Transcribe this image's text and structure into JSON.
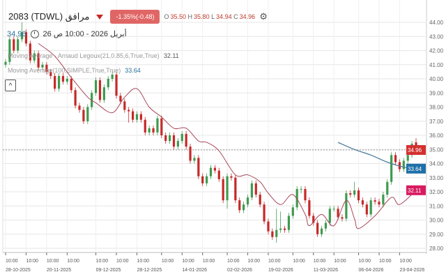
{
  "header": {
    "symbol": "2083 (TDWL) مرافق",
    "change_badge": "-1.35%(-0.48)",
    "ohlc": {
      "o_label": "O",
      "o": "35.50",
      "h_label": "H",
      "h": "35.80",
      "l_label": "L",
      "l": "34.94",
      "c_label": "C",
      "c": "34.96"
    },
    "last_price": "34.96",
    "datetime": "أبريل 2026 - 10:00 ص 26",
    "icons": {
      "direction": "triangle-down-icon",
      "settings": "gear-icon",
      "clock": "clock-icon",
      "collapse": "chevron-up-icon"
    }
  },
  "legend": [
    {
      "name": "Moving Average - Arnaud Legoux(21,0.85,6,True,True)",
      "value": "32.11"
    },
    {
      "name": "Moving Average(100,SIMPLE,True,True)",
      "value": "33.64"
    }
  ],
  "colors": {
    "up": "#3f9a4f",
    "down": "#c62828",
    "alma": "#a8475a",
    "sma": "#4a7a9c",
    "last_tag": "#d32f2f",
    "sma_tag": "#1f6fa8",
    "alma_tag": "#d81b60",
    "badge": "#e06666"
  },
  "chart_data": {
    "type": "candlestick",
    "ylim": [
      27.5,
      44.6
    ],
    "yticks": [
      "28.00",
      "29.00",
      "30.00",
      "31.00",
      "32.00",
      "33.00",
      "34.00",
      "35.00",
      "36.00",
      "37.00",
      "38.00",
      "39.00",
      "40.00",
      "41.00",
      "42.00",
      "43.00",
      "44.00"
    ],
    "grid": true,
    "candles": [
      [
        41.0,
        41.4,
        40.8,
        41.2
      ],
      [
        41.2,
        43.0,
        41.0,
        42.8
      ],
      [
        42.8,
        43.0,
        41.8,
        42.0
      ],
      [
        42.0,
        43.0,
        41.8,
        42.8
      ],
      [
        42.8,
        44.0,
        42.6,
        43.3
      ],
      [
        43.3,
        43.5,
        42.3,
        42.5
      ],
      [
        42.5,
        42.7,
        41.1,
        41.3
      ],
      [
        41.3,
        42.0,
        41.1,
        41.8
      ],
      [
        41.8,
        42.0,
        40.6,
        40.8
      ],
      [
        40.8,
        41.2,
        40.6,
        41.0
      ],
      [
        41.0,
        41.2,
        40.3,
        40.5
      ],
      [
        40.5,
        40.7,
        40.0,
        40.2
      ],
      [
        40.2,
        40.4,
        39.1,
        39.3
      ],
      [
        39.3,
        40.4,
        39.1,
        40.2
      ],
      [
        40.2,
        40.4,
        39.6,
        39.8
      ],
      [
        39.8,
        40.2,
        39.6,
        40.0
      ],
      [
        40.0,
        40.2,
        39.0,
        39.2
      ],
      [
        39.2,
        39.4,
        37.9,
        38.1
      ],
      [
        38.1,
        38.3,
        37.6,
        37.8
      ],
      [
        37.8,
        38.0,
        36.8,
        37.0
      ],
      [
        37.0,
        38.2,
        36.8,
        38.0
      ],
      [
        38.0,
        39.2,
        37.8,
        39.0
      ],
      [
        39.0,
        40.1,
        38.8,
        39.9
      ],
      [
        39.9,
        40.1,
        38.3,
        38.5
      ],
      [
        38.5,
        39.6,
        38.3,
        39.4
      ],
      [
        39.4,
        40.2,
        39.2,
        40.0
      ],
      [
        40.0,
        40.6,
        39.8,
        40.3
      ],
      [
        40.3,
        40.5,
        38.6,
        38.8
      ],
      [
        38.8,
        39.0,
        38.2,
        38.4
      ],
      [
        38.4,
        38.6,
        37.6,
        37.8
      ],
      [
        37.8,
        38.0,
        36.9,
        37.7
      ],
      [
        37.7,
        37.9,
        36.9,
        37.1
      ],
      [
        37.1,
        37.7,
        36.9,
        37.5
      ],
      [
        37.5,
        37.7,
        36.9,
        37.1
      ],
      [
        37.1,
        37.3,
        36.0,
        36.2
      ],
      [
        36.2,
        36.7,
        36.0,
        36.5
      ],
      [
        36.5,
        36.7,
        36.0,
        36.2
      ],
      [
        36.2,
        37.4,
        36.0,
        37.2
      ],
      [
        37.2,
        37.4,
        35.8,
        36.0
      ],
      [
        36.0,
        36.2,
        35.4,
        35.6
      ],
      [
        35.6,
        36.2,
        35.4,
        36.0
      ],
      [
        36.0,
        36.2,
        35.0,
        35.2
      ],
      [
        35.2,
        35.8,
        35.0,
        35.6
      ],
      [
        35.6,
        36.3,
        35.4,
        36.1
      ],
      [
        36.1,
        36.3,
        35.0,
        35.2
      ],
      [
        35.2,
        35.4,
        34.0,
        34.2
      ],
      [
        34.2,
        34.6,
        34.0,
        34.4
      ],
      [
        34.4,
        34.6,
        32.9,
        33.1
      ],
      [
        33.1,
        33.3,
        32.4,
        32.6
      ],
      [
        32.6,
        33.3,
        32.4,
        33.1
      ],
      [
        33.1,
        33.9,
        32.9,
        33.7
      ],
      [
        33.7,
        33.9,
        33.3,
        33.5
      ],
      [
        33.5,
        33.7,
        32.7,
        32.9
      ],
      [
        32.9,
        33.1,
        31.2,
        31.4
      ],
      [
        31.4,
        33.3,
        30.8,
        33.1
      ],
      [
        33.1,
        33.3,
        32.8,
        33.0
      ],
      [
        33.0,
        33.2,
        31.2,
        31.4
      ],
      [
        31.4,
        31.6,
        30.5,
        30.7
      ],
      [
        30.7,
        31.3,
        30.5,
        31.1
      ],
      [
        31.1,
        31.8,
        30.9,
        31.6
      ],
      [
        31.6,
        32.8,
        31.4,
        32.6
      ],
      [
        32.6,
        32.8,
        31.6,
        31.8
      ],
      [
        31.8,
        32.0,
        30.9,
        31.1
      ],
      [
        31.1,
        31.3,
        29.7,
        29.9
      ],
      [
        29.9,
        30.1,
        29.0,
        29.2
      ],
      [
        29.2,
        29.4,
        28.6,
        28.8
      ],
      [
        28.8,
        30.8,
        28.4,
        29.3
      ],
      [
        29.3,
        30.6,
        29.1,
        29.4
      ],
      [
        29.4,
        29.6,
        29.1,
        29.3
      ],
      [
        29.3,
        30.5,
        29.1,
        30.3
      ],
      [
        30.3,
        31.1,
        30.1,
        30.9
      ],
      [
        30.9,
        32.4,
        30.7,
        32.2
      ],
      [
        32.2,
        32.4,
        31.9,
        32.2
      ],
      [
        32.2,
        32.4,
        31.2,
        31.4
      ],
      [
        31.4,
        31.6,
        30.1,
        30.3
      ],
      [
        30.3,
        30.5,
        29.6,
        29.8
      ],
      [
        29.8,
        30.0,
        28.8,
        29.0
      ],
      [
        29.0,
        29.6,
        28.8,
        29.4
      ],
      [
        29.4,
        30.0,
        29.2,
        29.8
      ],
      [
        29.8,
        31.0,
        29.6,
        30.8
      ],
      [
        30.8,
        31.0,
        30.6,
        30.8
      ],
      [
        30.8,
        31.0,
        30.0,
        30.2
      ],
      [
        30.2,
        30.4,
        29.9,
        30.1
      ],
      [
        30.1,
        32.1,
        29.9,
        31.9
      ],
      [
        31.9,
        32.1,
        31.6,
        31.8
      ],
      [
        31.8,
        32.7,
        31.6,
        32.1
      ],
      [
        32.1,
        32.3,
        31.2,
        31.4
      ],
      [
        31.4,
        31.6,
        30.9,
        31.1
      ],
      [
        31.1,
        31.3,
        30.2,
        30.4
      ],
      [
        30.4,
        31.6,
        30.2,
        31.4
      ],
      [
        31.4,
        31.6,
        31.1,
        31.3
      ],
      [
        31.3,
        31.5,
        30.9,
        31.1
      ],
      [
        31.1,
        32.0,
        30.9,
        31.8
      ],
      [
        31.8,
        32.9,
        31.6,
        32.7
      ],
      [
        32.7,
        34.8,
        32.5,
        34.6
      ],
      [
        34.6,
        34.8,
        33.9,
        34.1
      ],
      [
        34.1,
        34.3,
        33.4,
        33.6
      ],
      [
        33.6,
        34.4,
        33.4,
        34.2
      ],
      [
        34.2,
        34.8,
        34.0,
        34.6
      ],
      [
        34.6,
        35.6,
        34.4,
        35.4
      ],
      [
        35.5,
        35.8,
        34.94,
        34.96
      ]
    ],
    "alma": [
      [
        9,
        42.5
      ],
      [
        13,
        41.6
      ],
      [
        17,
        40.1
      ],
      [
        21,
        38.7
      ],
      [
        23,
        38.3
      ],
      [
        27,
        37.6
      ],
      [
        30,
        38.7
      ],
      [
        33,
        39.3
      ],
      [
        36,
        38.0
      ],
      [
        39,
        37.3
      ],
      [
        42,
        36.5
      ],
      [
        45,
        36.5
      ],
      [
        48,
        35.6
      ],
      [
        50,
        35.5
      ],
      [
        53,
        34.9
      ],
      [
        57,
        33.2
      ],
      [
        60,
        33.2
      ],
      [
        63,
        32.7
      ],
      [
        65,
        31.9
      ],
      [
        68,
        31.1
      ],
      [
        71,
        31.8
      ],
      [
        74,
        30.4
      ],
      [
        75,
        29.6
      ],
      [
        78,
        30.4
      ],
      [
        81,
        29.6
      ],
      [
        84,
        31.4
      ],
      [
        86,
        30.1
      ],
      [
        87,
        29.4
      ],
      [
        91,
        30.3
      ],
      [
        95,
        31.6
      ],
      [
        97,
        31.1
      ],
      [
        101,
        32.11
      ]
    ],
    "sma": [
      [
        82,
        35.5
      ],
      [
        86,
        35.0
      ],
      [
        90,
        34.6
      ],
      [
        94,
        34.1
      ],
      [
        98,
        33.75
      ],
      [
        101,
        33.64
      ]
    ],
    "x_ticks": [
      {
        "i": 1,
        "time": "10:00",
        "date": "28-10-2025"
      },
      {
        "i": 6,
        "time": "10:00"
      },
      {
        "i": 11,
        "time": "10:00",
        "date": "20-11-2025"
      },
      {
        "i": 16,
        "time": "10:00"
      },
      {
        "i": 23,
        "time": "10:00",
        "date": "09-12-2025"
      },
      {
        "i": 28,
        "time": "10:00"
      },
      {
        "i": 33,
        "time": "10:00",
        "date": "28-12-2025"
      },
      {
        "i": 39,
        "time": "10:00"
      },
      {
        "i": 44,
        "time": "10:00",
        "date": "14-01-2026"
      },
      {
        "i": 49,
        "time": "10:00"
      },
      {
        "i": 55,
        "time": "10:00",
        "date": "02-02-2026"
      },
      {
        "i": 60,
        "time": "10:00"
      },
      {
        "i": 65,
        "time": "10:00",
        "date": "19-02-2026"
      },
      {
        "i": 71,
        "time": "10:00"
      },
      {
        "i": 76,
        "time": "10:00",
        "date": "11-03-2026"
      },
      {
        "i": 81,
        "time": "10:00"
      },
      {
        "i": 87,
        "time": "10:00",
        "date": "06-04-2026"
      },
      {
        "i": 92,
        "time": "10:00"
      },
      {
        "i": 97,
        "time": "10:00",
        "date": "23-04-2026"
      }
    ],
    "price_tags": [
      {
        "value": 34.96,
        "label": "34.96",
        "color_key": "last_tag"
      },
      {
        "value": 33.64,
        "label": "33.64",
        "color_key": "sma_tag"
      },
      {
        "value": 32.11,
        "label": "32.11",
        "color_key": "alma_tag"
      }
    ]
  }
}
